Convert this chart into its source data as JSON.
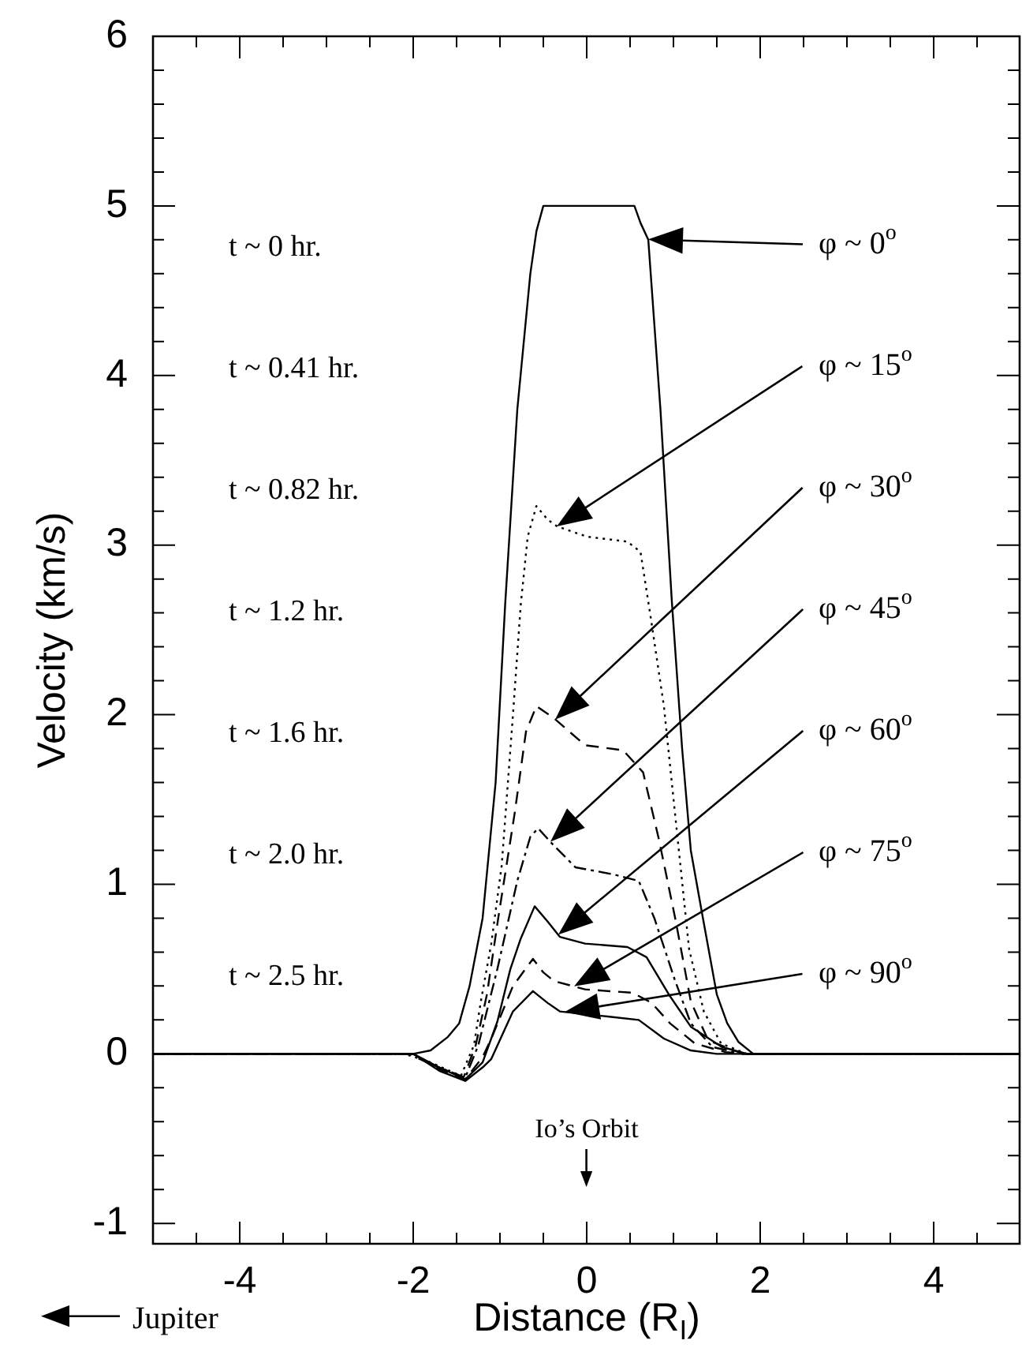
{
  "chart_data": {
    "type": "line",
    "xlabel": "Distance (R$_{I}$)",
    "ylabel": "Velocity (km/s)",
    "xlim": [
      -5,
      5
    ],
    "ylim": [
      -1.12,
      6
    ],
    "xticks": [
      {
        "value": -4.5,
        "label": null
      },
      -4,
      {
        "value": -3.5,
        "label": null
      },
      {
        "value": -3,
        "label": null
      },
      {
        "value": -2.5,
        "label": null
      },
      -2,
      {
        "value": -1.5,
        "label": null
      },
      {
        "value": -1,
        "label": null
      },
      {
        "value": -0.5,
        "label": null
      },
      0,
      {
        "value": 0.5,
        "label": null
      },
      {
        "value": 1,
        "label": null
      },
      {
        "value": 1.5,
        "label": null
      },
      2,
      {
        "value": 2.5,
        "label": null
      },
      {
        "value": 3,
        "label": null
      },
      {
        "value": 3.5,
        "label": null
      },
      4,
      {
        "value": 4.5,
        "label": null
      }
    ],
    "yticks": [
      -1,
      {
        "value": -0.8,
        "label": null
      },
      {
        "value": -0.6,
        "label": null
      },
      {
        "value": -0.4,
        "label": null
      },
      {
        "value": -0.2,
        "label": null
      },
      0,
      {
        "value": 0.2,
        "label": null
      },
      {
        "value": 0.4,
        "label": null
      },
      {
        "value": 0.6,
        "label": null
      },
      {
        "value": 0.8,
        "label": null
      },
      1,
      {
        "value": 1.2,
        "label": null
      },
      {
        "value": 1.4,
        "label": null
      },
      {
        "value": 1.6,
        "label": null
      },
      {
        "value": 1.8,
        "label": null
      },
      2,
      {
        "value": 2.2,
        "label": null
      },
      {
        "value": 2.4,
        "label": null
      },
      {
        "value": 2.6,
        "label": null
      },
      {
        "value": 2.8,
        "label": null
      },
      3,
      {
        "value": 3.2,
        "label": null
      },
      {
        "value": 3.4,
        "label": null
      },
      {
        "value": 3.6,
        "label": null
      },
      {
        "value": 3.8,
        "label": null
      },
      4,
      {
        "value": 4.2,
        "label": null
      },
      {
        "value": 4.4,
        "label": null
      },
      {
        "value": 4.6,
        "label": null
      },
      {
        "value": 4.8,
        "label": null
      },
      5,
      {
        "value": 5.2,
        "label": null
      },
      {
        "value": 5.4,
        "label": null
      },
      {
        "value": 5.6,
        "label": null
      },
      {
        "value": 5.8,
        "label": null
      },
      6
    ],
    "series": [
      {
        "color": "#000000",
        "line_style": "solid",
        "x": [
          -5,
          -2,
          -1.8,
          -1.6,
          -1.47,
          -1.35,
          -1.2,
          -1.05,
          -0.94,
          -0.8,
          -0.65,
          -0.58,
          -0.5,
          0.55,
          0.62,
          0.71,
          0.85,
          0.98,
          1.1,
          1.2,
          1.34,
          1.5,
          1.62,
          1.75,
          1.92,
          5
        ],
        "values": [
          0,
          0,
          0.02,
          0.1,
          0.18,
          0.4,
          0.8,
          1.6,
          2.65,
          3.8,
          4.6,
          4.85,
          5,
          5,
          4.9,
          4.8,
          3.8,
          2.68,
          1.8,
          1.2,
          0.8,
          0.35,
          0.18,
          0.07,
          0,
          0
        ]
      },
      {
        "color": "#000000",
        "line_style": "dotted",
        "x": [
          -5,
          -2.1,
          -1.8,
          -1.45,
          -1.3,
          -1.22,
          -1.1,
          -0.98,
          -0.85,
          -0.76,
          -0.68,
          -0.58,
          -0.45,
          -0.34,
          0,
          0.47,
          0.62,
          0.73,
          0.89,
          1.05,
          1.18,
          1.35,
          1.55,
          1.85,
          5
        ],
        "values": [
          0,
          0,
          -0.05,
          -0.13,
          0.05,
          0.31,
          0.65,
          1.11,
          2.0,
          2.65,
          3.05,
          3.23,
          3.15,
          3.11,
          3.05,
          3.02,
          2.96,
          2.6,
          2.05,
          1.26,
          0.62,
          0.25,
          0.06,
          0,
          0
        ]
      },
      {
        "color": "#000000",
        "line_style": "dashed",
        "x": [
          -5,
          -2.05,
          -1.8,
          -1.42,
          -1.28,
          -1.15,
          -1.02,
          -0.83,
          -0.7,
          -0.58,
          -0.38,
          -0.02,
          0.42,
          0.65,
          0.83,
          1.02,
          1.2,
          1.4,
          1.8,
          5
        ],
        "values": [
          0,
          0,
          -0.06,
          -0.14,
          0.05,
          0.35,
          0.8,
          1.42,
          1.9,
          2.05,
          1.98,
          1.82,
          1.79,
          1.66,
          1.27,
          0.8,
          0.31,
          0.08,
          0,
          0
        ]
      },
      {
        "color": "#000000",
        "line_style": "dashdot",
        "x": [
          -5,
          -2,
          -1.75,
          -1.4,
          -1.25,
          -1.03,
          -0.8,
          -0.65,
          -0.56,
          -0.4,
          -0.13,
          0.29,
          0.6,
          0.78,
          1.02,
          1.2,
          1.45,
          1.8,
          5
        ],
        "values": [
          0,
          0,
          -0.07,
          -0.14,
          0.05,
          0.5,
          1.02,
          1.28,
          1.33,
          1.24,
          1.1,
          1.06,
          1.02,
          0.8,
          0.43,
          0.18,
          0.04,
          0,
          0
        ]
      },
      {
        "color": "#000000",
        "line_style": "solid",
        "x": [
          -5,
          -2,
          -1.7,
          -1.4,
          -1.2,
          -1.03,
          -0.88,
          -0.76,
          -0.6,
          -0.45,
          -0.31,
          -0.02,
          0.47,
          0.69,
          0.96,
          1.2,
          1.56,
          1.85,
          5
        ],
        "values": [
          0,
          0,
          -0.08,
          -0.15,
          -0.05,
          0.19,
          0.5,
          0.68,
          0.87,
          0.78,
          0.69,
          0.65,
          0.63,
          0.57,
          0.34,
          0.16,
          0.04,
          0,
          0
        ]
      },
      {
        "color": "#000000",
        "line_style": "dashed",
        "x": [
          -5,
          -2,
          -1.7,
          -1.4,
          -1.2,
          -1.1,
          -0.85,
          -0.62,
          -0.5,
          -0.38,
          -0.02,
          0.53,
          0.75,
          0.96,
          1.25,
          1.6,
          1.85,
          5
        ],
        "values": [
          0,
          0,
          -0.09,
          -0.15,
          -0.02,
          0.09,
          0.4,
          0.56,
          0.48,
          0.43,
          0.38,
          0.36,
          0.3,
          0.18,
          0.06,
          0.01,
          0,
          0
        ]
      },
      {
        "color": "#000000",
        "line_style": "solid",
        "x": [
          -5,
          -2,
          -1.7,
          -1.4,
          -1.2,
          -1.1,
          -0.85,
          -0.62,
          -0.45,
          -0.31,
          0.24,
          0.6,
          0.89,
          1.2,
          1.5,
          5
        ],
        "values": [
          0,
          0,
          -0.1,
          -0.16,
          -0.08,
          -0.03,
          0.25,
          0.37,
          0.3,
          0.25,
          0.22,
          0.2,
          0.09,
          0.02,
          0,
          0
        ]
      }
    ],
    "annotations": [
      "t ~ 0 hr.",
      "t ~ 0.41 hr.",
      "t ~ 0.82 hr.",
      "t ~ 1.2 hr.",
      "t ~ 1.6 hr.",
      "t ~ 2.0 hr.",
      "t ~ 2.5 hr.",
      "φ ~ 0$^{o}$",
      "φ ~ 15$^{o}$",
      "φ ~ 30$^{o}$",
      "φ ~ 45$^{o}$",
      "φ ~ 60$^{o}$",
      "φ ~ 75$^{o}$",
      "φ ~ 90$^{o}$",
      "Io’s Orbit",
      "Jupiter"
    ]
  }
}
